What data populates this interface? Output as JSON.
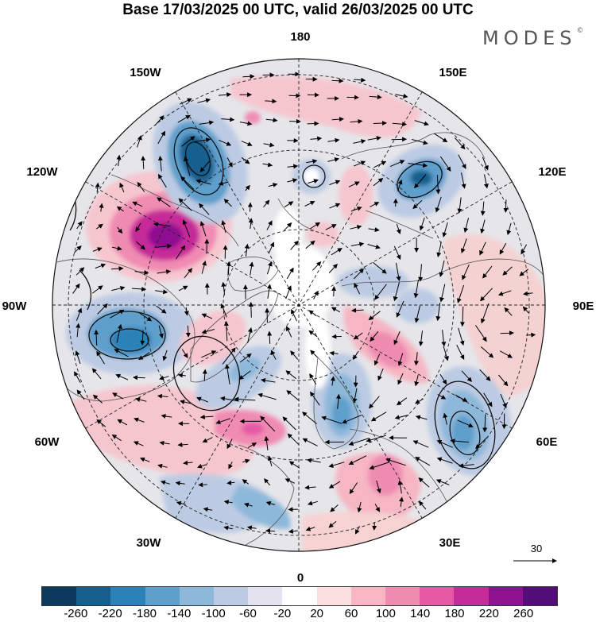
{
  "header": {
    "title": "Base 17/03/2025 00 UTC, valid 26/03/2025 00 UTC",
    "brand": "MODES",
    "brand_mark": "©"
  },
  "map": {
    "projection": "north polar stereographic",
    "longitude_labels": {
      "top": "180",
      "top_left": "150W",
      "top_right": "150E",
      "upper_left": "120W",
      "upper_right": "120E",
      "left": "90W",
      "right": "90E",
      "lower_left": "60W",
      "lower_right": "60E",
      "bottom_left": "30W",
      "bottom_right": "30E",
      "bottom": "0"
    },
    "reference_vector": {
      "value": "30"
    },
    "anomaly_centers": [
      {
        "sign": "negative",
        "longitude": "150W",
        "strength": -200
      },
      {
        "sign": "positive",
        "longitude": "120W",
        "strength": 240
      },
      {
        "sign": "negative",
        "longitude": "90W",
        "strength": -180
      },
      {
        "sign": "negative",
        "longitude": "150E",
        "strength": -180
      },
      {
        "sign": "negative",
        "longitude": "60E",
        "strength": -160
      },
      {
        "sign": "positive",
        "longitude": "30E",
        "strength": 140
      },
      {
        "sign": "negative",
        "longitude": "0",
        "strength": -140
      },
      {
        "sign": "positive",
        "longitude": "30W",
        "strength": 140
      },
      {
        "sign": "negative",
        "longitude": "60W",
        "strength": -100
      },
      {
        "sign": "positive",
        "longitude": "90E",
        "strength": 120
      }
    ]
  },
  "colorbar": {
    "ticks": [
      "-260",
      "-220",
      "-180",
      "-140",
      "-100",
      "-60",
      "-20",
      "20",
      "60",
      "100",
      "140",
      "180",
      "220",
      "260"
    ],
    "colors": [
      "#0c3a5c",
      "#155e8e",
      "#2a82b8",
      "#5e9fcc",
      "#8eb8da",
      "#bccbe3",
      "#e3e3ef",
      "#ffffff",
      "#fbdede",
      "#f6b6c3",
      "#f08bb2",
      "#e559a5",
      "#c62c98",
      "#8f1190",
      "#520d78"
    ]
  }
}
